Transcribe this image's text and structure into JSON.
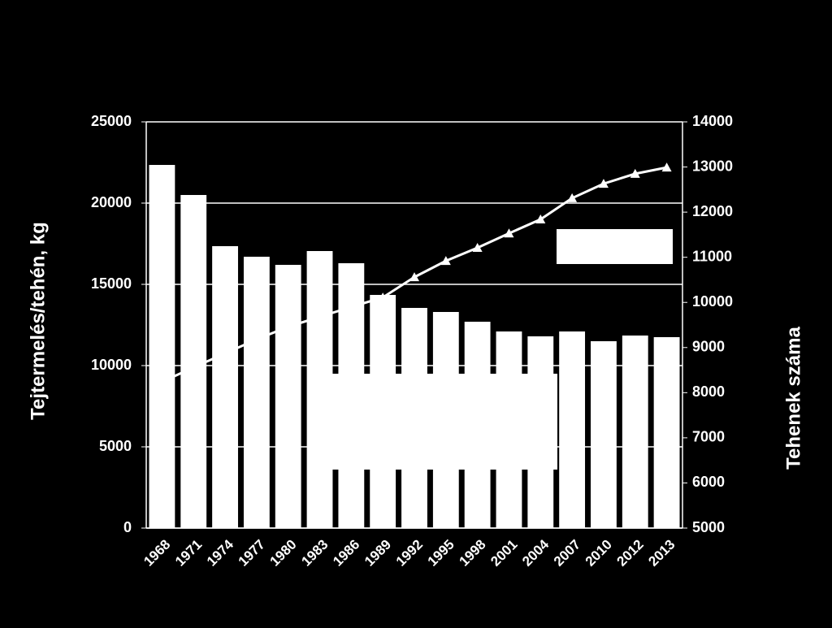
{
  "chart_data": {
    "type": "bar-line",
    "y_label": "Tejtermelés/tehén, kg",
    "y2_label": "Tehenek száma",
    "categories": [
      "1968",
      "1971",
      "1974",
      "1977",
      "1980",
      "1983",
      "1986",
      "1989",
      "1992",
      "1995",
      "1998",
      "2001",
      "2004",
      "2007",
      "2010",
      "2012",
      "2013"
    ],
    "series": [
      {
        "type": "bar",
        "color": "#ffffff",
        "values": [
          22350,
          20500,
          17350,
          16700,
          16200,
          17050,
          16300,
          14350,
          13550,
          13300,
          12700,
          12100,
          11800,
          12100,
          11500,
          11850,
          11750
        ]
      },
      {
        "type": "line",
        "axis": "y2",
        "color": "#ffffff",
        "values": [
          8240,
          8560,
          8870,
          9180,
          9460,
          9680,
          9900,
          10110,
          10560,
          10920,
          11210,
          11530,
          11840,
          12310,
          12630,
          12850,
          12990
        ]
      }
    ],
    "ylim": [
      0,
      25000
    ],
    "yticks": [
      0,
      5000,
      10000,
      15000,
      20000,
      25000
    ],
    "y2lim": [
      5000,
      14000
    ],
    "y2ticks": [
      5000,
      6000,
      7000,
      8000,
      9000,
      10000,
      11000,
      12000,
      13000,
      14000
    ],
    "grid": true
  }
}
